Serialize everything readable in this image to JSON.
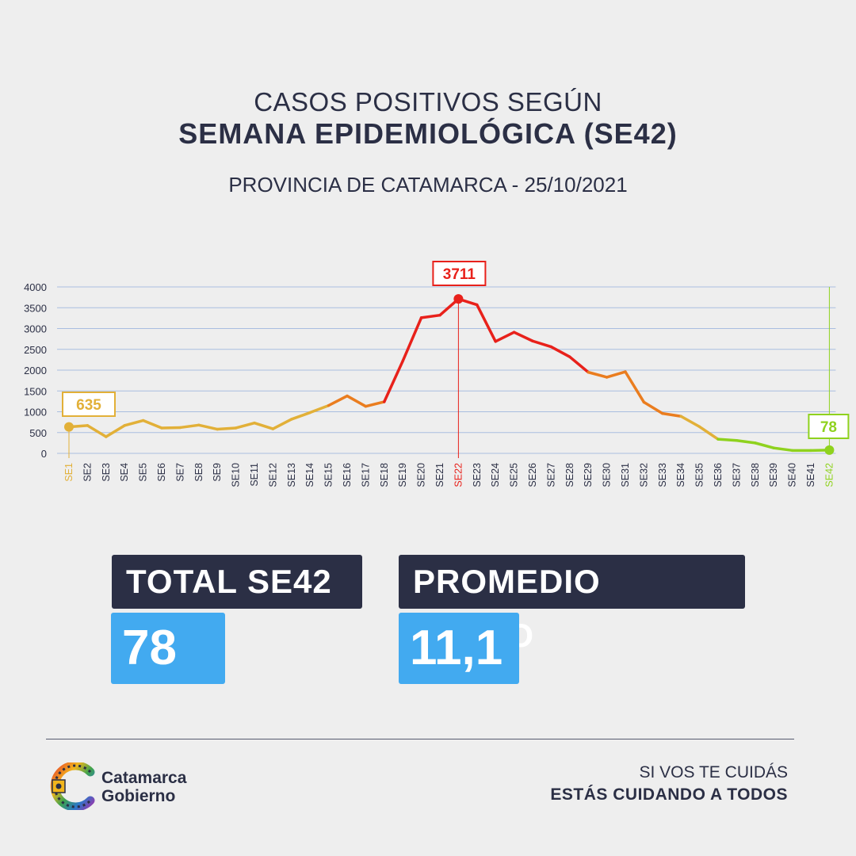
{
  "header": {
    "title_line1": "CASOS POSITIVOS SEGÚN",
    "title_line2": "SEMANA EPIDEMIOLÓGICA (SE42)",
    "subtitle": "PROVINCIA DE CATAMARCA - 25/10/2021"
  },
  "stats": {
    "total_label": "TOTAL SE42",
    "total_value": "78",
    "avg_label": "PROMEDIO DIARIO",
    "avg_value": "11,1"
  },
  "footer": {
    "logo_line1": "Catamarca",
    "logo_line2": "Gobierno",
    "slogan_line1": "SI VOS TE CUIDÁS",
    "slogan_line2": "ESTÁS CUIDANDO A TODOS"
  },
  "colors": {
    "dark": "#2b2f45",
    "accent_blue": "#42aaf0",
    "early": "#e2b038",
    "peak": "#e8211b",
    "mid": "#ea7d1f",
    "late": "#8fd21e",
    "grid": "#a9bde0"
  },
  "chart_data": {
    "type": "line",
    "categories": [
      "SE1",
      "SE2",
      "SE3",
      "SE4",
      "SE5",
      "SE6",
      "SE7",
      "SE8",
      "SE9",
      "SE10",
      "SE11",
      "SE12",
      "SE13",
      "SE14",
      "SE15",
      "SE16",
      "SE17",
      "SE18",
      "SE19",
      "SE20",
      "SE21",
      "SE22",
      "SE23",
      "SE24",
      "SE25",
      "SE26",
      "SE27",
      "SE28",
      "SE29",
      "SE30",
      "SE31",
      "SE32",
      "SE33",
      "SE34",
      "SE35",
      "SE36",
      "SE37",
      "SE38",
      "SE39",
      "SE40",
      "SE41",
      "SE42"
    ],
    "values": [
      635,
      670,
      400,
      670,
      790,
      610,
      620,
      680,
      580,
      610,
      730,
      590,
      820,
      980,
      1150,
      1380,
      1130,
      1240,
      2220,
      3260,
      3320,
      3711,
      3570,
      2690,
      2910,
      2700,
      2560,
      2320,
      1950,
      1830,
      1960,
      1230,
      960,
      890,
      640,
      340,
      310,
      250,
      130,
      70,
      70,
      78
    ],
    "ylim": [
      0,
      4000
    ],
    "yticks": [
      0,
      500,
      1000,
      1500,
      2000,
      2500,
      3000,
      3500,
      4000
    ],
    "annotations": [
      {
        "category": "SE1",
        "label": "635"
      },
      {
        "category": "SE22",
        "label": "3711"
      },
      {
        "category": "SE42",
        "label": "78"
      }
    ],
    "grid": true
  }
}
